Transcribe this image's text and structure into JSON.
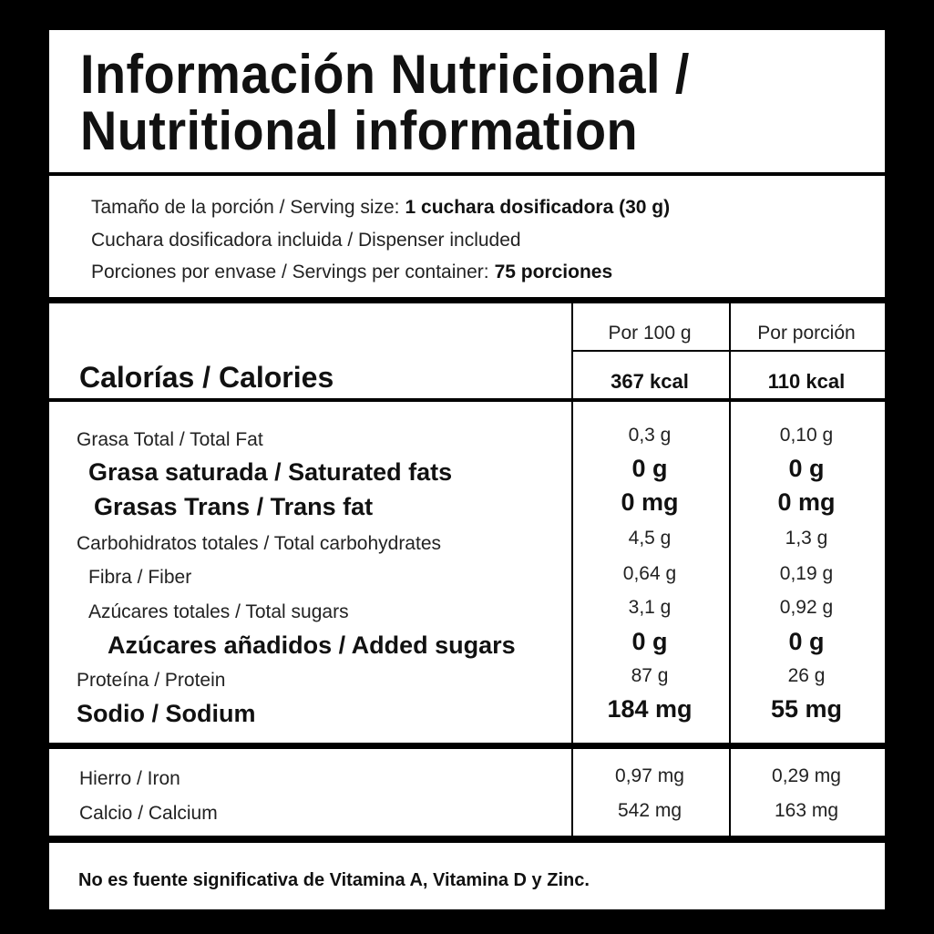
{
  "header": {
    "title_line1": "Información Nutricional /",
    "title_line2": "Nutritional information"
  },
  "serving": [
    {
      "label": "Tamaño de la porción / Serving size:",
      "value": "1 cuchara dosificadora (30 g)"
    },
    {
      "label": "Cuchara dosificadora incluida / Dispenser included"
    },
    {
      "label": "Porciones por envase / Servings per container:",
      "value": "75 porciones"
    }
  ],
  "table": {
    "columns": [
      "Por 100 g",
      "Por porción"
    ],
    "calories": {
      "label": "Calorías / Calories",
      "per_100g": "367 kcal",
      "per_serving": "110 kcal"
    },
    "rows": [
      {
        "label": "Grasa Total / Total Fat",
        "per_100g": "0,3 g",
        "per_serving": "0,10 g"
      },
      {
        "label": "Grasa saturada / Saturated fats",
        "per_100g": "0 g",
        "per_serving": "0 g"
      },
      {
        "label": "Grasas Trans / Trans fat",
        "per_100g": "0 mg",
        "per_serving": "0 mg"
      },
      {
        "label": "Carbohidratos totales / Total carbohydrates",
        "per_100g": "4,5 g",
        "per_serving": "1,3 g"
      },
      {
        "label": "Fibra / Fiber",
        "per_100g": "0,64 g",
        "per_serving": "0,19 g"
      },
      {
        "label": "Azúcares totales / Total sugars",
        "per_100g": "3,1 g",
        "per_serving": "0,92 g"
      },
      {
        "label": "Azúcares añadidos / Added sugars",
        "per_100g": "0 g",
        "per_serving": "0 g"
      },
      {
        "label": "Proteína / Protein",
        "per_100g": "87 g",
        "per_serving": "26 g"
      },
      {
        "label": "Sodio / Sodium",
        "per_100g": "184 mg",
        "per_serving": "55 mg"
      }
    ],
    "minerals": [
      {
        "label": "Hierro / Iron",
        "per_100g": "0,97 mg",
        "per_serving": "0,29 mg"
      },
      {
        "label": "Calcio / Calcium",
        "per_100g": "542 mg",
        "per_serving": "163 mg"
      }
    ]
  },
  "footer": "No es fuente significativa de Vitamina A, Vitamina D y Zinc."
}
